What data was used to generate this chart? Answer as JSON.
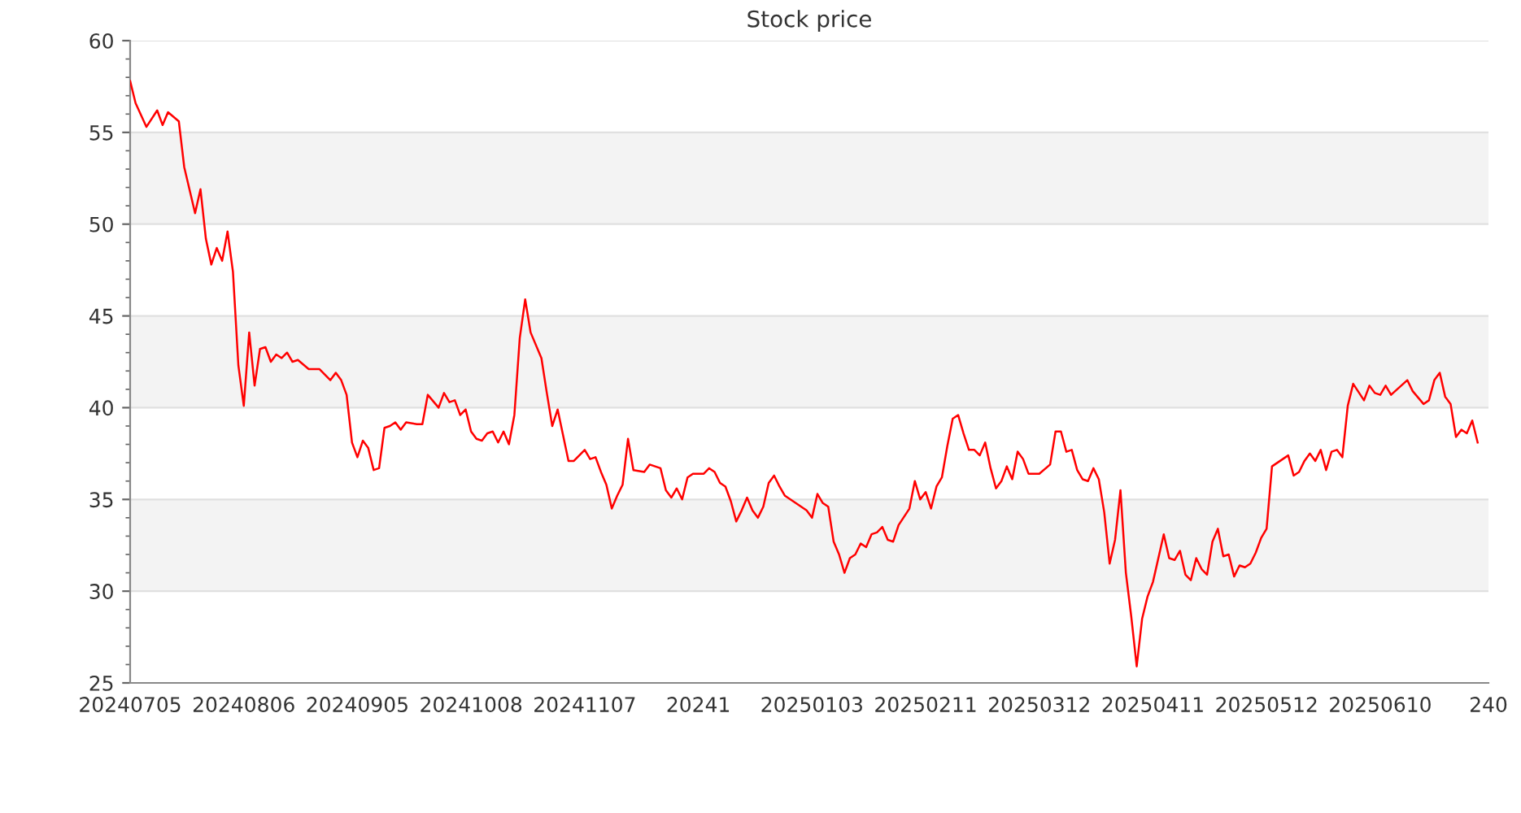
{
  "chart_data": {
    "type": "line",
    "title": "Stock price",
    "categories": [
      "20240705",
      null,
      null,
      null,
      null,
      null,
      null,
      null,
      null,
      null,
      null,
      null,
      null,
      null,
      null,
      null,
      null,
      null,
      null,
      null,
      null,
      "20240806",
      null,
      null,
      null,
      null,
      null,
      null,
      null,
      null,
      null,
      null,
      null,
      null,
      null,
      null,
      null,
      null,
      null,
      null,
      null,
      null,
      "20240905",
      null,
      null,
      null,
      null,
      null,
      null,
      null,
      null,
      null,
      null,
      null,
      null,
      null,
      null,
      null,
      null,
      null,
      null,
      null,
      null,
      "20241008",
      null,
      null,
      null,
      null,
      null,
      null,
      null,
      null,
      null,
      null,
      null,
      null,
      null,
      null,
      null,
      null,
      null,
      null,
      null,
      null,
      "20241107",
      null,
      null,
      null,
      null,
      null,
      null,
      null,
      null,
      null,
      null,
      null,
      null,
      null,
      null,
      null,
      null,
      null,
      null,
      null,
      null,
      "20241",
      null,
      null,
      null,
      null,
      null,
      null,
      null,
      null,
      null,
      null,
      null,
      null,
      null,
      null,
      null,
      null,
      null,
      null,
      null,
      null,
      "20250103",
      null,
      null,
      null,
      null,
      null,
      null,
      null,
      null,
      null,
      null,
      null,
      null,
      null,
      null,
      null,
      null,
      null,
      null,
      null,
      null,
      "20250211",
      null,
      null,
      null,
      null,
      null,
      null,
      null,
      null,
      null,
      null,
      null,
      null,
      null,
      null,
      null,
      null,
      null,
      null,
      null,
      null,
      "20250312",
      null,
      null,
      null,
      null,
      null,
      null,
      null,
      null,
      null,
      null,
      null,
      null,
      null,
      null,
      null,
      null,
      null,
      null,
      null,
      null,
      "20250411",
      null,
      null,
      null,
      null,
      null,
      null,
      null,
      null,
      null,
      null,
      null,
      null,
      null,
      null,
      null,
      null,
      null,
      null,
      null,
      null,
      "20250512",
      null,
      null,
      null,
      null,
      null,
      null,
      null,
      null,
      null,
      null,
      null,
      null,
      null,
      null,
      null,
      null,
      null,
      null,
      null,
      null,
      "20250610",
      null,
      null,
      null,
      null,
      null,
      null,
      null,
      null,
      null,
      null,
      null,
      null,
      null,
      null,
      null,
      null,
      null,
      null,
      null,
      "240"
    ],
    "ylim": [
      25,
      60
    ],
    "yticks": [
      25,
      30,
      35,
      40,
      45,
      50,
      55,
      60
    ],
    "grid": "y",
    "marker": "none",
    "line_style": "solid",
    "bands": [
      {
        "axis": "y",
        "from": 30,
        "to": 35,
        "color": "#f3f3f3"
      },
      {
        "axis": "y",
        "from": 40,
        "to": 45,
        "color": "#f3f3f3"
      },
      {
        "axis": "y",
        "from": 50,
        "to": 55,
        "color": "#f3f3f3"
      }
    ],
    "series": [
      {
        "color": "#ff0000",
        "values": [
          57.8,
          56.6,
          null,
          55.3,
          null,
          56.2,
          55.4,
          56.1,
          null,
          55.6,
          53.1,
          null,
          50.6,
          51.9,
          49.2,
          47.8,
          48.7,
          48.0,
          49.6,
          47.4,
          42.3,
          40.1,
          44.1,
          41.2,
          43.2,
          43.3,
          42.5,
          42.9,
          42.7,
          43.0,
          42.5,
          42.6,
          null,
          42.1,
          null,
          42.1,
          41.8,
          41.5,
          41.9,
          41.5,
          40.7,
          38.1,
          37.3,
          38.2,
          37.8,
          36.6,
          36.7,
          38.9,
          39.0,
          39.2,
          38.8,
          39.2,
          null,
          39.1,
          39.1,
          40.7,
          null,
          40.0,
          40.8,
          40.3,
          40.4,
          39.6,
          39.9,
          38.7,
          38.3,
          38.2,
          38.6,
          38.7,
          38.1,
          38.7,
          38.0,
          39.6,
          43.8,
          45.9,
          44.1,
          null,
          42.7,
          40.8,
          39.0,
          39.9,
          null,
          37.1,
          37.1,
          37.4,
          37.7,
          37.2,
          37.3,
          36.5,
          35.8,
          34.5,
          35.2,
          35.8,
          38.3,
          36.6,
          null,
          36.5,
          36.9,
          null,
          36.7,
          35.5,
          35.1,
          35.6,
          35.0,
          36.2,
          36.4,
          null,
          36.4,
          36.7,
          36.5,
          35.9,
          35.7,
          34.9,
          33.8,
          34.4,
          35.1,
          34.4,
          34.0,
          34.6,
          35.9,
          36.3,
          35.7,
          35.2,
          null,
          34.8,
          34.6,
          34.4,
          34.0,
          35.3,
          34.8,
          34.6,
          32.7,
          32.0,
          31.0,
          31.8,
          32.0,
          32.6,
          32.4,
          33.1,
          33.2,
          33.5,
          32.8,
          32.7,
          33.6,
          null,
          34.5,
          36.0,
          35.0,
          35.4,
          34.5,
          35.7,
          36.2,
          37.9,
          39.4,
          39.6,
          38.6,
          37.7,
          37.7,
          37.4,
          38.1,
          36.7,
          35.6,
          36.0,
          36.8,
          36.1,
          37.6,
          37.2,
          36.4,
          null,
          36.4,
          null,
          36.9,
          38.7,
          38.7,
          37.6,
          37.7,
          36.6,
          36.1,
          36.0,
          36.7,
          36.1,
          34.3,
          31.5,
          32.8,
          35.5,
          31.0,
          28.6,
          25.9,
          28.5,
          29.7,
          30.5,
          null,
          33.1,
          31.8,
          31.7,
          32.2,
          30.9,
          30.6,
          31.8,
          31.2,
          30.9,
          32.7,
          33.4,
          31.9,
          32.0,
          30.8,
          31.4,
          31.3,
          31.5,
          32.1,
          32.9,
          33.4,
          36.8,
          37.0,
          null,
          37.4,
          36.3,
          36.5,
          37.1,
          37.5,
          37.1,
          37.7,
          36.6,
          37.6,
          37.7,
          37.3,
          40.1,
          41.3,
          null,
          40.4,
          41.2,
          40.8,
          40.7,
          41.2,
          40.7,
          null,
          null,
          41.5,
          40.9,
          null,
          40.2,
          40.4,
          41.5,
          41.9,
          40.6,
          40.2,
          38.4,
          38.8,
          38.6,
          39.3,
          38.1,
          null,
          null
        ]
      }
    ]
  }
}
